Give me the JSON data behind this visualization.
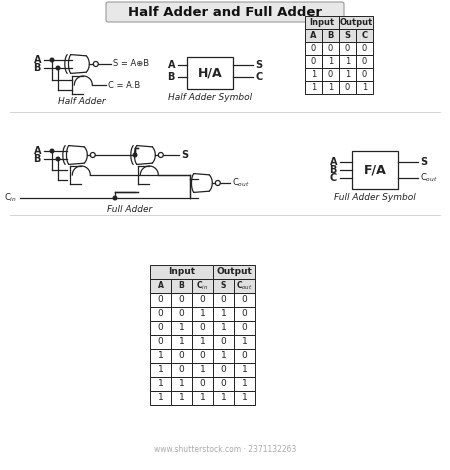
{
  "title": "Half Adder and Full Adder",
  "bg_color": "#ffffff",
  "title_bg": "#e8e8e8",
  "line_color": "#222222",
  "half_adder_label": "Half Adder",
  "half_adder_symbol_label": "Half Adder Symbol",
  "full_adder_label": "Full Adder",
  "full_adder_symbol_label": "Full Adder Symbol",
  "ha_truth_data": [
    [
      0,
      0,
      0,
      0
    ],
    [
      0,
      1,
      1,
      0
    ],
    [
      1,
      0,
      1,
      0
    ],
    [
      1,
      1,
      0,
      1
    ]
  ],
  "fa_truth_data": [
    [
      0,
      0,
      0,
      0,
      0
    ],
    [
      0,
      0,
      1,
      1,
      0
    ],
    [
      0,
      1,
      0,
      1,
      0
    ],
    [
      0,
      1,
      1,
      0,
      1
    ],
    [
      1,
      0,
      0,
      1,
      0
    ],
    [
      1,
      0,
      1,
      0,
      1
    ],
    [
      1,
      1,
      0,
      0,
      1
    ],
    [
      1,
      1,
      1,
      1,
      1
    ]
  ],
  "watermark": "www.shutterstock.com · 2371132263"
}
